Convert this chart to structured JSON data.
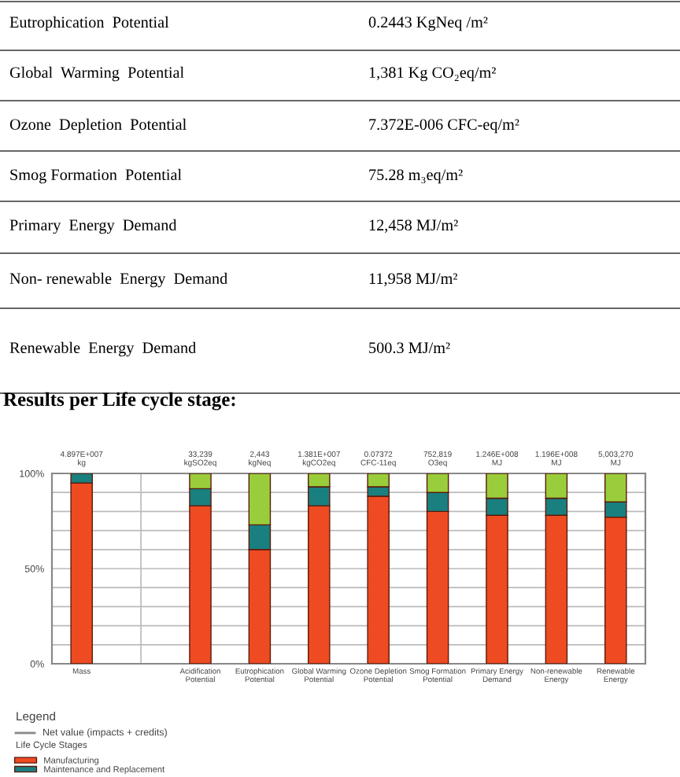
{
  "chart_data": {
    "type": "bar",
    "stacked": true,
    "title": "Results per Life cycle stage:",
    "legend_title": "Legend",
    "categories": [
      "Mass",
      null,
      "Acidification\nPotential",
      "Eutrophication\nPotential",
      "Global Warming\nPotential",
      "Ozone Depletion\nPotential",
      "Smog Formation\nPotential",
      "Primary Energy\nDemand",
      "Non-renewable\nEnergy",
      "Renewable\nEnergy"
    ],
    "series": [
      {
        "name": "Manufacturing",
        "color": "#ee4b22",
        "values": [
          95,
          null,
          83,
          60,
          83,
          88,
          80,
          78,
          78,
          77
        ]
      },
      {
        "name": "Maintenance and Replacement",
        "color": "#1a7f7f",
        "values": [
          5,
          null,
          9,
          13,
          10,
          5,
          10,
          9,
          9,
          8
        ]
      },
      {
        "color": "#9acd3c",
        "values": [
          0,
          null,
          8,
          27,
          7,
          7,
          10,
          13,
          13,
          15
        ]
      }
    ],
    "ylim": [
      0,
      100
    ],
    "yticks": [
      {
        "value": 0,
        "label": "0%"
      },
      {
        "value": 10,
        "label": null
      },
      {
        "value": 20,
        "label": null
      },
      {
        "value": 30,
        "label": null
      },
      {
        "value": 40,
        "label": null
      },
      {
        "value": 50,
        "label": "50%"
      },
      {
        "value": 60,
        "label": null
      },
      {
        "value": 70,
        "label": null
      },
      {
        "value": 80,
        "label": null
      },
      {
        "value": 90,
        "label": null
      },
      {
        "value": 100,
        "label": "100%"
      }
    ],
    "grid": true,
    "legend": "bottom",
    "annotations": [
      "Eutrophication  Potential",
      "0.2443 KgNeq /m²",
      "Global  Warming  Potential",
      "1,381 Kg CO₂eq/m²",
      "Ozone  Depletion  Potential",
      "7.372E-006 CFC-eq/m²",
      "Smog Formation  Potential",
      "75.28 m₃eq/m²",
      "Primary  Energy  Demand",
      "12,458 MJ/m²",
      "Non- renewable  Energy  Demand",
      "11,958 MJ/m²",
      "Renewable  Energy  Demand",
      "500.3 MJ/m²",
      "Net value (impacts + credits)",
      "Life Cycle Stages",
      {
        "text": "4.897E+007\nkg",
        "x": "Mass",
        "y": 100
      },
      {
        "text": "33,239\nkgSO2eq",
        "x": "Acidification\nPotential",
        "y": 100
      },
      {
        "text": "2,443\nkgNeq",
        "x": "Eutrophication\nPotential",
        "y": 100
      },
      {
        "text": "1.381E+007\nkgCO2eq",
        "x": "Global Warming\nPotential",
        "y": 100
      },
      {
        "text": "0.07372\nCFC-11eq",
        "x": "Ozone Depletion\nPotential",
        "y": 100
      },
      {
        "text": "752,819\nO3eq",
        "x": "Smog Formation\nPotential",
        "y": 100
      },
      {
        "text": "1.246E+008\nMJ",
        "x": "Primary Energy\nDemand",
        "y": 100
      },
      {
        "text": "1.196E+008\nMJ",
        "x": "Non-renewable\nEnergy",
        "y": 100
      },
      {
        "text": "5,003,270\nMJ",
        "x": "Renewable\nEnergy",
        "y": 100
      }
    ]
  }
}
